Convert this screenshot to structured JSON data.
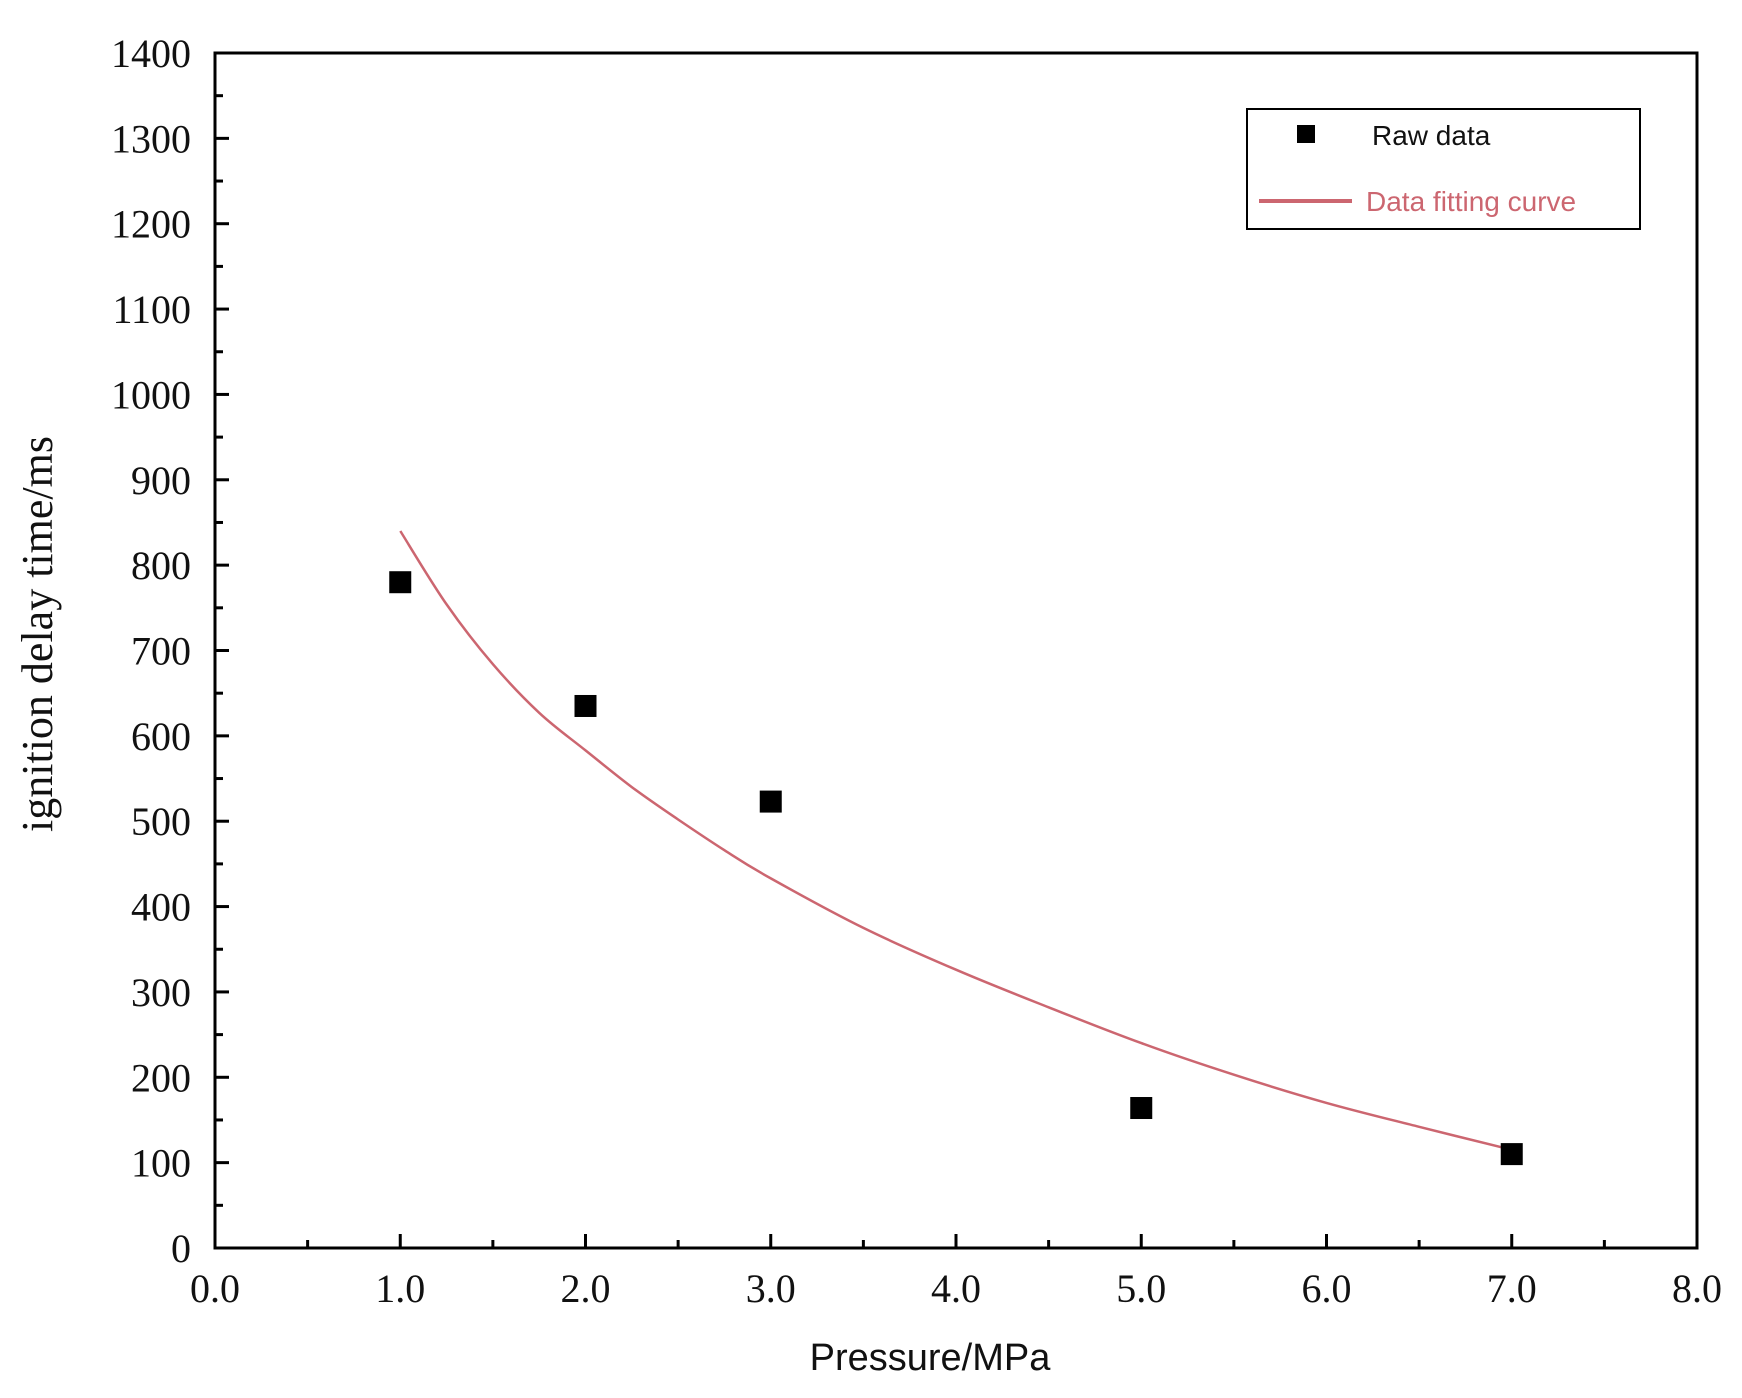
{
  "chart_data": {
    "type": "scatter",
    "title": "",
    "xlabel": "Pressure/MPa",
    "ylabel": "ignition delay time/ms",
    "xlim": [
      0.0,
      8.0
    ],
    "ylim": [
      0,
      1400
    ],
    "x_ticks": [
      "0.0",
      "1.0",
      "2.0",
      "3.0",
      "4.0",
      "5.0",
      "6.0",
      "7.0",
      "8.0"
    ],
    "y_ticks": [
      "0",
      "100",
      "200",
      "300",
      "400",
      "500",
      "600",
      "700",
      "800",
      "900",
      "1000",
      "1100",
      "1200",
      "1300",
      "1400"
    ],
    "grid": false,
    "legend_position": "top-right",
    "series": [
      {
        "name": "Raw data",
        "kind": "scatter",
        "marker": "square",
        "color": "#000000",
        "x": [
          1.0,
          2.0,
          3.0,
          5.0,
          7.0
        ],
        "y": [
          780,
          635,
          523,
          164,
          110
        ]
      },
      {
        "name": "Data fitting curve",
        "kind": "line",
        "color": "#cc6670",
        "x": [
          1.0,
          1.25,
          1.5,
          1.75,
          2.0,
          2.25,
          2.5,
          2.75,
          3.0,
          3.5,
          4.0,
          4.5,
          5.0,
          5.5,
          6.0,
          6.5,
          7.0
        ],
        "y": [
          840,
          754,
          684,
          627,
          583,
          540,
          502,
          466,
          433,
          375,
          326,
          282,
          240,
          203,
          170,
          142,
          115
        ]
      }
    ]
  }
}
